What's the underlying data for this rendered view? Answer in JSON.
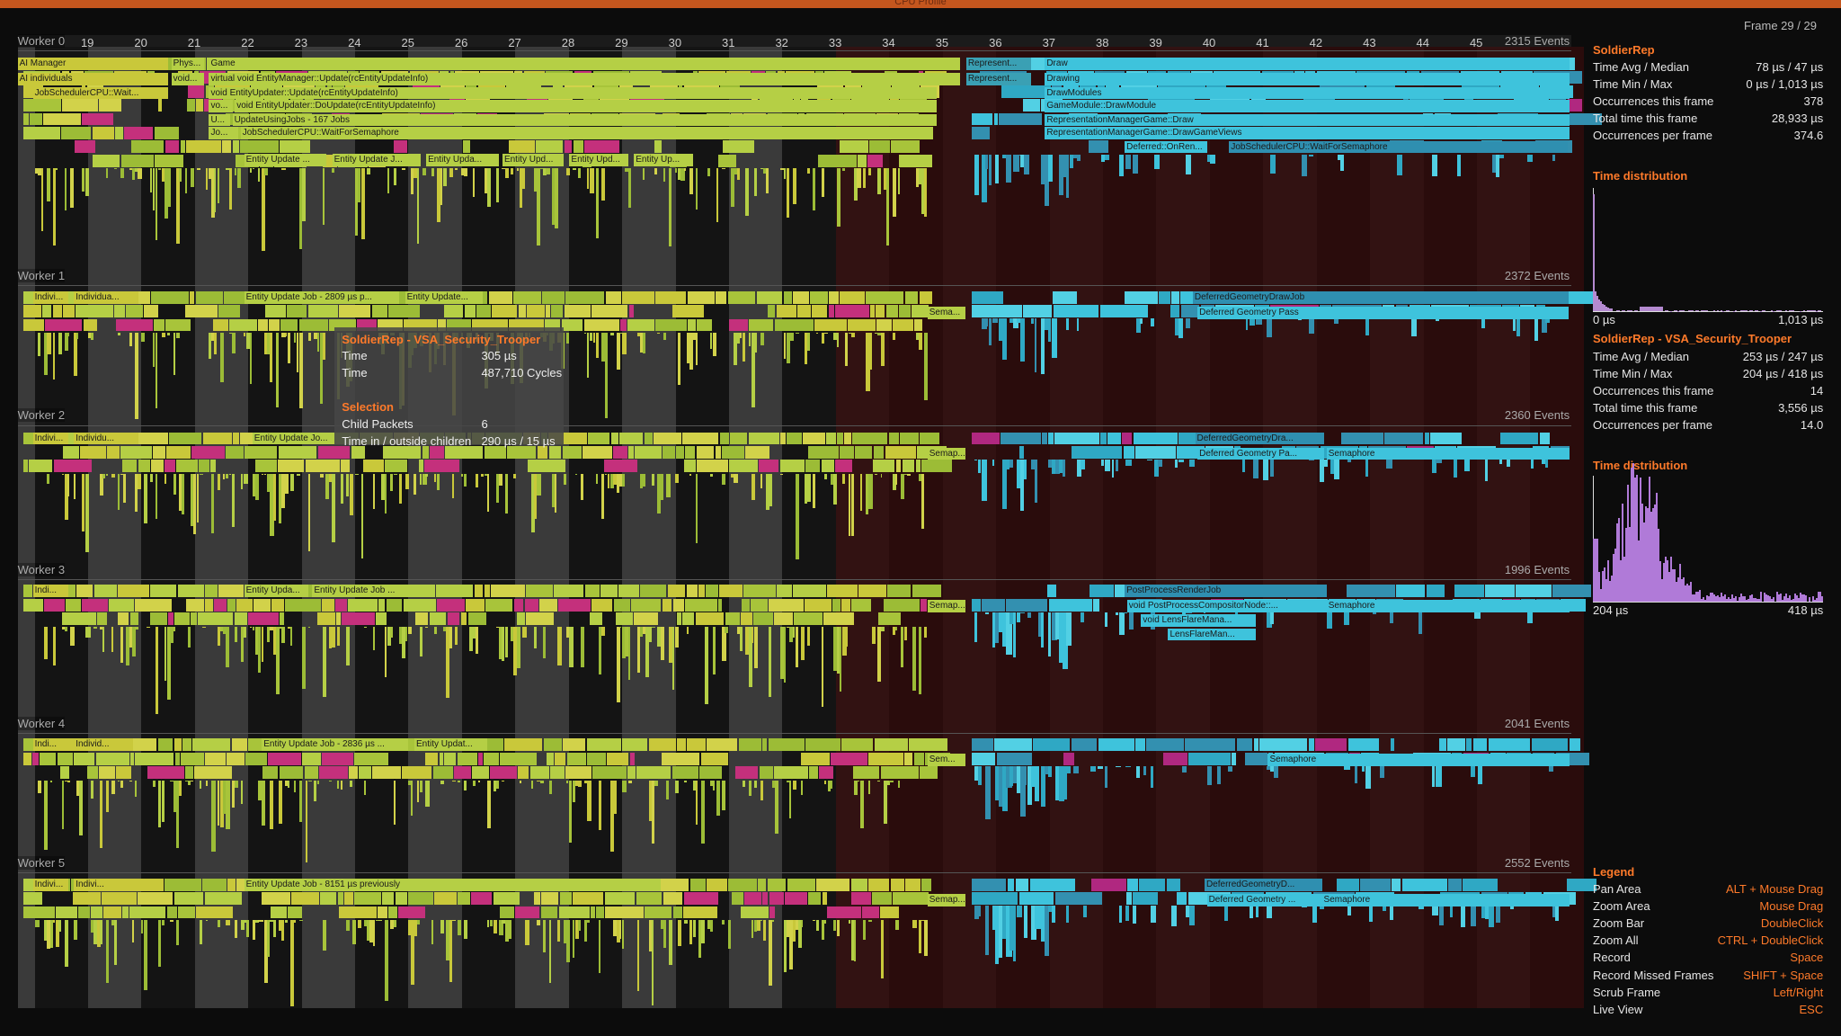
{
  "header": {
    "title": "CPU Profile",
    "frame": "Frame 29 / 29"
  },
  "ruler": {
    "ticks": [
      "19",
      "20",
      "21",
      "22",
      "23",
      "24",
      "25",
      "26",
      "27",
      "28",
      "29",
      "30",
      "31",
      "32",
      "33",
      "34",
      "35",
      "36",
      "37",
      "38",
      "39",
      "40",
      "41",
      "42",
      "43",
      "44",
      "45"
    ]
  },
  "workers": [
    {
      "name": "Worker 0",
      "events": "2315 Events",
      "labels": [
        "AI Manager",
        "Phys...",
        "Game",
        "Represent...",
        "Draw",
        "AI individuals",
        "void...",
        "virtual void EntityManager::Update(rcEntityUpdateInfo)",
        "Represent...",
        "Drawing",
        "JobSchedulerCPU::Wait...",
        "void EntityUpdater::Update(rcEntityUpdateInfo)",
        "DrawModules",
        "vo...",
        "void EntityUpdater::DoUpdate(rcEntityUpdateInfo)",
        "GameModule::DrawModule",
        "U...",
        "UpdateUsingJobs - 167 Jobs",
        "RepresentationManagerGame::Draw",
        "Jo...",
        "JobSchedulerCPU::WaitForSemaphore",
        "RepresentationManagerGame::DrawGameViews",
        "Deferred::OnRen...",
        "JobSchedulerCPU::WaitForSemaphore",
        "Entity Update ...",
        "Entity Update J...",
        "Entity Upda...",
        "Entity Upd...",
        "Entity Upd...",
        "Entity Up..."
      ]
    },
    {
      "name": "Worker 1",
      "events": "2372 Events",
      "labels": [
        "Indivi...",
        "Individua...",
        "Entity Update Job - 2809 µs p...",
        "Entity Update...",
        "Sema...",
        "DeferredGeometryDrawJob",
        "Deferred Geometry Pass"
      ]
    },
    {
      "name": "Worker 2",
      "events": "2360 Events",
      "labels": [
        "Indivi...",
        "Individu...",
        "Entity Update Jo...",
        "Semap...",
        "DeferredGeometryDra...",
        "Deferred Geometry Pa...",
        "Semaphore"
      ]
    },
    {
      "name": "Worker 3",
      "events": "1996 Events",
      "labels": [
        "Indi...",
        "Entity Upda...",
        "Entity Update Job ...",
        "Semap...",
        "PostProcessRenderJob",
        "void PostProcessCompositorNode::...",
        "Semaphore",
        "void LensFlareMana...",
        "LensFlareMan..."
      ]
    },
    {
      "name": "Worker 4",
      "events": "2041 Events",
      "labels": [
        "Indi...",
        "Individ...",
        "Entity Update Job - 2836 µs ...",
        "Entity Updat...",
        "Sem...",
        "Semaphore"
      ]
    },
    {
      "name": "Worker 5",
      "events": "2552 Events",
      "labels": [
        "Indivi...",
        "Indivi...",
        "Entity Update Job - 8151 µs previously",
        "Semap...",
        "DeferredGeometryD...",
        "Deferred Geometry ...",
        "Semaphore"
      ]
    }
  ],
  "tooltip": {
    "title": "SoldierRep - VSA_Security_Trooper",
    "rows": [
      [
        "Time",
        "305 µs"
      ],
      [
        "Time",
        "487,710 Cycles"
      ]
    ],
    "section": "Selection",
    "rows2": [
      [
        "Child Packets",
        "6"
      ],
      [
        "Time in / outside children",
        "290 µs / 15 µs"
      ]
    ]
  },
  "panel": {
    "stats1": {
      "title": "SoldierRep",
      "rows": [
        [
          "Time Avg / Median",
          "78 µs / 47 µs"
        ],
        [
          "Time Min / Max",
          "0 µs / 1,013 µs"
        ],
        [
          "Occurrences this frame",
          "378"
        ],
        [
          "Total time this frame",
          "28,933 µs"
        ],
        [
          "Occurrences per frame",
          "374.6"
        ]
      ]
    },
    "dist1": {
      "title": "Time distribution",
      "min": "0 µs",
      "max": "1,013 µs"
    },
    "stats2": {
      "title": "SoldierRep - VSA_Security_Trooper",
      "rows": [
        [
          "Time Avg / Median",
          "253 µs / 247 µs"
        ],
        [
          "Time Min / Max",
          "204 µs / 418 µs"
        ],
        [
          "Occurrences this frame",
          "14"
        ],
        [
          "Total time this frame",
          "3,556 µs"
        ],
        [
          "Occurrences per frame",
          "14.0"
        ]
      ]
    },
    "dist2": {
      "title": "Time distribution",
      "min": "204 µs",
      "max": "418 µs"
    },
    "legend": {
      "title": "Legend",
      "rows": [
        [
          "Pan Area",
          "ALT + Mouse Drag"
        ],
        [
          "Zoom Area",
          "Mouse Drag"
        ],
        [
          "Zoom Bar",
          "DoubleClick"
        ],
        [
          "Zoom All",
          "CTRL + DoubleClick"
        ],
        [
          "Record",
          "Space"
        ],
        [
          "Record Missed Frames",
          "SHIFT + Space"
        ],
        [
          "Scrub Frame",
          "Left/Right"
        ],
        [
          "Live View",
          "ESC"
        ]
      ]
    }
  }
}
